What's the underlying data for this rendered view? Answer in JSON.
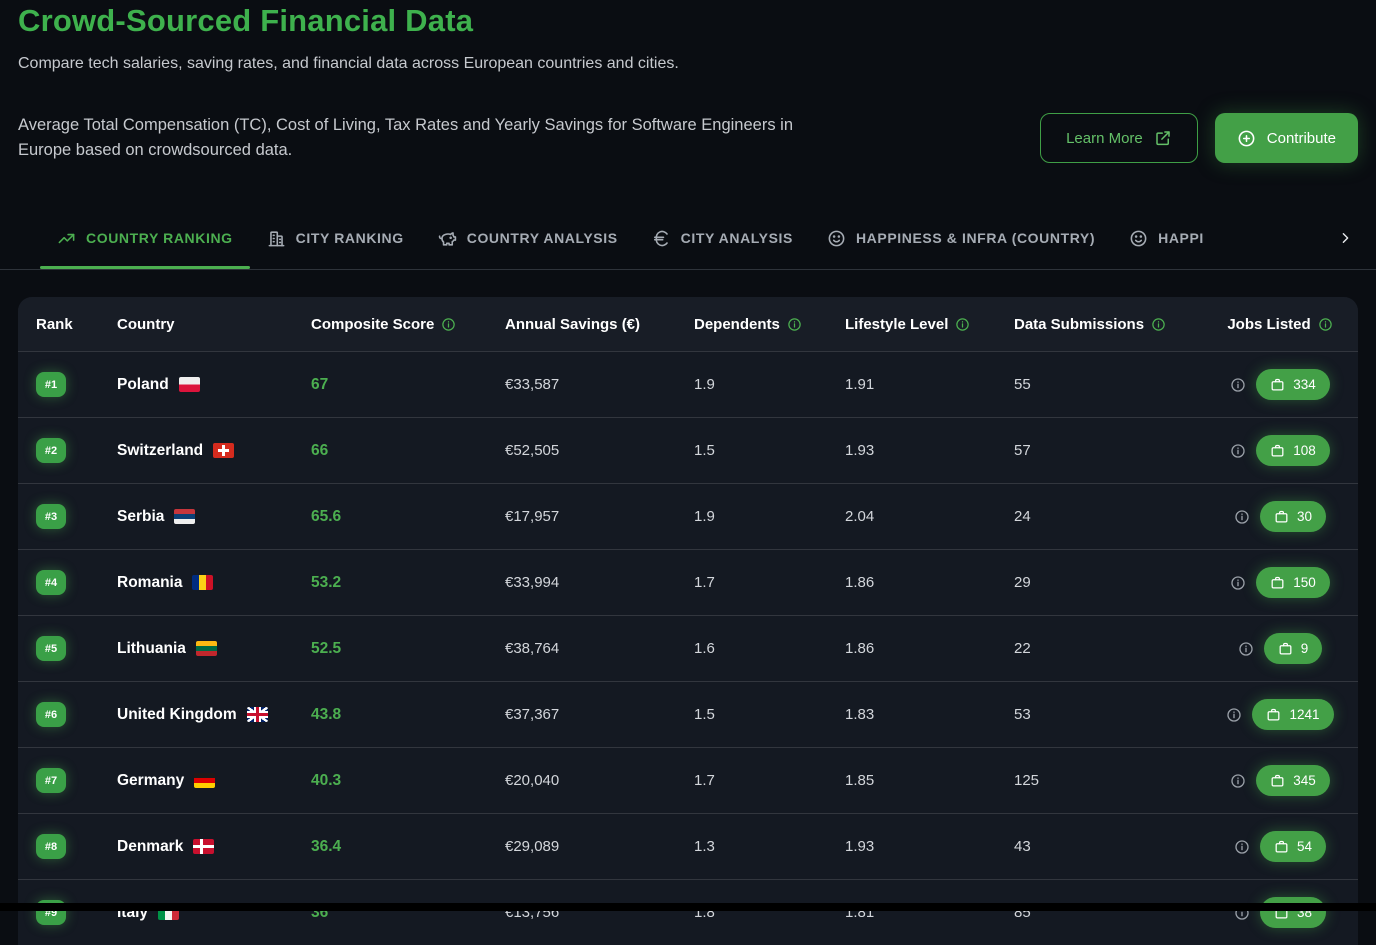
{
  "page": {
    "title": "Crowd-Sourced Financial Data",
    "subtitle": "Compare tech salaries, saving rates, and financial data across European countries and cities.",
    "description": "Average Total Compensation (TC), Cost of Living, Tax Rates and Yearly Savings for Software Engineers in Europe based on crowdsourced data.",
    "learn_more_label": "Learn More",
    "contribute_label": "Contribute"
  },
  "colors": {
    "accent_green": "#4caf50",
    "title_green": "#3eb14d",
    "button_green": "#43a047",
    "page_background": "#0a0d12",
    "table_background": "#141922",
    "table_header_background": "#181d26"
  },
  "tabs": [
    {
      "label": "COUNTRY RANKING",
      "icon": "trending-up-icon",
      "active": true
    },
    {
      "label": "CITY RANKING",
      "icon": "building-icon",
      "active": false
    },
    {
      "label": "COUNTRY ANALYSIS",
      "icon": "piggy-bank-icon",
      "active": false
    },
    {
      "label": "CITY ANALYSIS",
      "icon": "euro-icon",
      "active": false
    },
    {
      "label": "HAPPINESS & INFRA (COUNTRY)",
      "icon": "smiley-icon",
      "active": false
    },
    {
      "label": "HAPPI",
      "icon": "smiley-icon",
      "active": false
    }
  ],
  "table": {
    "columns": [
      {
        "key": "rank",
        "label": "Rank",
        "info": false
      },
      {
        "key": "country",
        "label": "Country",
        "info": false
      },
      {
        "key": "score",
        "label": "Composite Score",
        "info": true
      },
      {
        "key": "savings",
        "label": "Annual Savings (€)",
        "info": false
      },
      {
        "key": "dependents",
        "label": "Dependents",
        "info": true
      },
      {
        "key": "lifestyle",
        "label": "Lifestyle Level",
        "info": true
      },
      {
        "key": "submissions",
        "label": "Data Submissions",
        "info": true
      },
      {
        "key": "jobs",
        "label": "Jobs Listed",
        "info": true
      }
    ],
    "rows": [
      {
        "rank": "#1",
        "country": "Poland",
        "flag": "pl",
        "score": "67",
        "savings": "€33,587",
        "dependents": "1.9",
        "lifestyle": "1.91",
        "submissions": "55",
        "jobs": "334"
      },
      {
        "rank": "#2",
        "country": "Switzerland",
        "flag": "ch",
        "score": "66",
        "savings": "€52,505",
        "dependents": "1.5",
        "lifestyle": "1.93",
        "submissions": "57",
        "jobs": "108"
      },
      {
        "rank": "#3",
        "country": "Serbia",
        "flag": "rs",
        "score": "65.6",
        "savings": "€17,957",
        "dependents": "1.9",
        "lifestyle": "2.04",
        "submissions": "24",
        "jobs": "30"
      },
      {
        "rank": "#4",
        "country": "Romania",
        "flag": "ro",
        "score": "53.2",
        "savings": "€33,994",
        "dependents": "1.7",
        "lifestyle": "1.86",
        "submissions": "29",
        "jobs": "150"
      },
      {
        "rank": "#5",
        "country": "Lithuania",
        "flag": "lt",
        "score": "52.5",
        "savings": "€38,764",
        "dependents": "1.6",
        "lifestyle": "1.86",
        "submissions": "22",
        "jobs": "9"
      },
      {
        "rank": "#6",
        "country": "United Kingdom",
        "flag": "gb",
        "score": "43.8",
        "savings": "€37,367",
        "dependents": "1.5",
        "lifestyle": "1.83",
        "submissions": "53",
        "jobs": "1241"
      },
      {
        "rank": "#7",
        "country": "Germany",
        "flag": "de",
        "score": "40.3",
        "savings": "€20,040",
        "dependents": "1.7",
        "lifestyle": "1.85",
        "submissions": "125",
        "jobs": "345"
      },
      {
        "rank": "#8",
        "country": "Denmark",
        "flag": "dk",
        "score": "36.4",
        "savings": "€29,089",
        "dependents": "1.3",
        "lifestyle": "1.93",
        "submissions": "43",
        "jobs": "54"
      },
      {
        "rank": "#9",
        "country": "Italy",
        "flag": "it",
        "score": "36",
        "savings": "€13,756",
        "dependents": "1.8",
        "lifestyle": "1.81",
        "submissions": "85",
        "jobs": "38"
      }
    ]
  }
}
